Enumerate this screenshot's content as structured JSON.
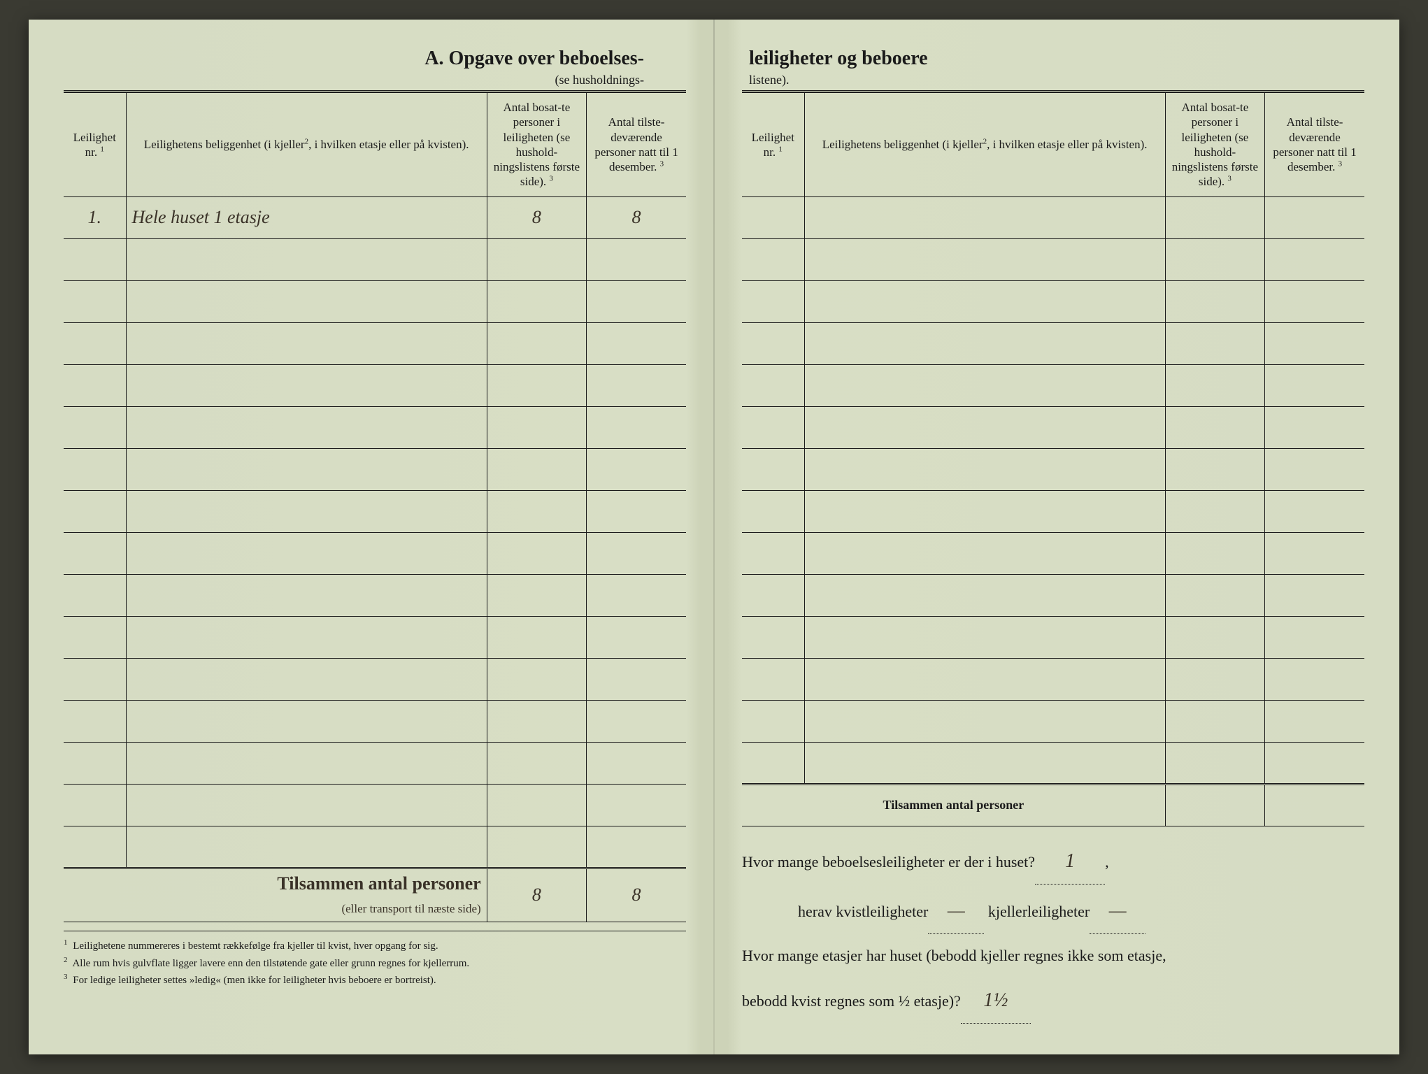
{
  "document": {
    "title_left": "A. Opgave over beboelses-",
    "subtitle_left": "(se husholdnings-",
    "title_right": "leiligheter og beboere",
    "subtitle_right": "listene).",
    "paper_color": "#d6dcc3",
    "fold_shadow": "#cdd3b8",
    "text_color": "#1a1a1a",
    "handwriting_color": "#3a3228"
  },
  "table_headers": {
    "col1": "Leilighet nr.",
    "col1_sup": "1",
    "col2": "Leilighetens beliggenhet (i kjeller",
    "col2_sup": "2",
    "col2_cont": ", i hvilken etasje eller på kvisten).",
    "col3": "Antal bosat-te personer i leiligheten (se hushold-ningslistens første side).",
    "col3_sup": "3",
    "col4": "Antal tilste-deværende personer natt til 1 desember.",
    "col4_sup": "3"
  },
  "left_table": {
    "rows": [
      {
        "nr": "1.",
        "location": "Hele huset 1 etasje",
        "count1": "8",
        "count2": "8"
      },
      {
        "nr": "",
        "location": "",
        "count1": "",
        "count2": ""
      },
      {
        "nr": "",
        "location": "",
        "count1": "",
        "count2": ""
      },
      {
        "nr": "",
        "location": "",
        "count1": "",
        "count2": ""
      },
      {
        "nr": "",
        "location": "",
        "count1": "",
        "count2": ""
      },
      {
        "nr": "",
        "location": "",
        "count1": "",
        "count2": ""
      },
      {
        "nr": "",
        "location": "",
        "count1": "",
        "count2": ""
      },
      {
        "nr": "",
        "location": "",
        "count1": "",
        "count2": ""
      },
      {
        "nr": "",
        "location": "",
        "count1": "",
        "count2": ""
      },
      {
        "nr": "",
        "location": "",
        "count1": "",
        "count2": ""
      },
      {
        "nr": "",
        "location": "",
        "count1": "",
        "count2": ""
      },
      {
        "nr": "",
        "location": "",
        "count1": "",
        "count2": ""
      },
      {
        "nr": "",
        "location": "",
        "count1": "",
        "count2": ""
      },
      {
        "nr": "",
        "location": "",
        "count1": "",
        "count2": ""
      },
      {
        "nr": "",
        "location": "",
        "count1": "",
        "count2": ""
      },
      {
        "nr": "",
        "location": "",
        "count1": "",
        "count2": ""
      }
    ],
    "totals_label": "Tilsammen antal personer",
    "totals_sublabel": "(eller transport til næste side)",
    "total1": "8",
    "total2": "8"
  },
  "right_table": {
    "rows": [
      {
        "nr": "",
        "location": "",
        "count1": "",
        "count2": ""
      },
      {
        "nr": "",
        "location": "",
        "count1": "",
        "count2": ""
      },
      {
        "nr": "",
        "location": "",
        "count1": "",
        "count2": ""
      },
      {
        "nr": "",
        "location": "",
        "count1": "",
        "count2": ""
      },
      {
        "nr": "",
        "location": "",
        "count1": "",
        "count2": ""
      },
      {
        "nr": "",
        "location": "",
        "count1": "",
        "count2": ""
      },
      {
        "nr": "",
        "location": "",
        "count1": "",
        "count2": ""
      },
      {
        "nr": "",
        "location": "",
        "count1": "",
        "count2": ""
      },
      {
        "nr": "",
        "location": "",
        "count1": "",
        "count2": ""
      },
      {
        "nr": "",
        "location": "",
        "count1": "",
        "count2": ""
      },
      {
        "nr": "",
        "location": "",
        "count1": "",
        "count2": ""
      },
      {
        "nr": "",
        "location": "",
        "count1": "",
        "count2": ""
      },
      {
        "nr": "",
        "location": "",
        "count1": "",
        "count2": ""
      },
      {
        "nr": "",
        "location": "",
        "count1": "",
        "count2": ""
      }
    ],
    "totals_label": "Tilsammen antal personer",
    "total1": "",
    "total2": ""
  },
  "footnotes": {
    "note1": "Leilighetene nummereres i bestemt rækkefølge fra kjeller til kvist, hver opgang for sig.",
    "note2": "Alle rum hvis gulvflate ligger lavere enn den tilstøtende gate eller grunn regnes for kjellerrum.",
    "note3": "For ledige leiligheter settes »ledig« (men ikke for leiligheter hvis beboere er bortreist)."
  },
  "questions": {
    "q1": "Hvor mange beboelsesleiligheter er der i huset?",
    "q1_answer": "1",
    "q2a": "herav kvistleiligheter",
    "q2a_answer": "—",
    "q2b": "kjellerleiligheter",
    "q2b_answer": "—",
    "q3": "Hvor mange etasjer har huset (bebodd kjeller regnes ikke som etasje,",
    "q3_cont": "bebodd kvist regnes som ½ etasje)?",
    "q3_answer": "1½"
  }
}
